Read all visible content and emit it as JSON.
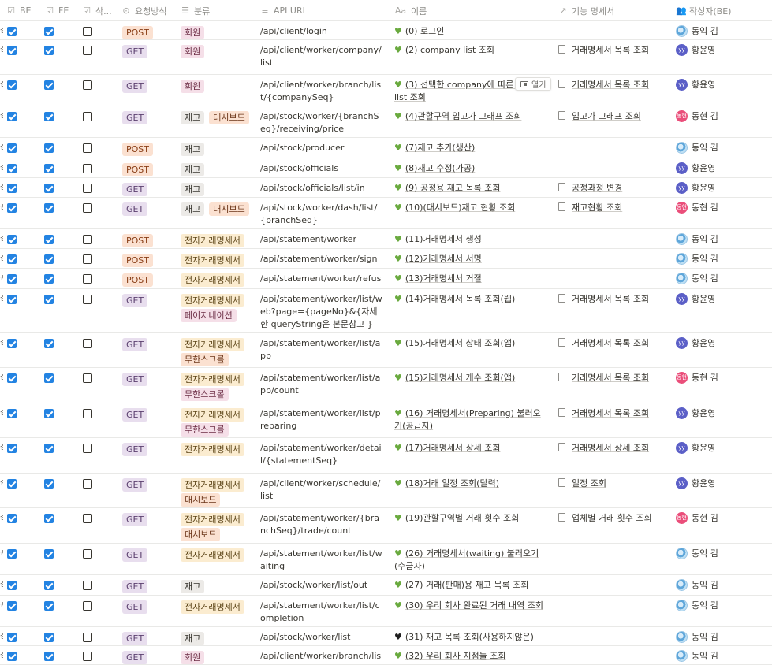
{
  "header": {
    "be": "BE",
    "fe": "FE",
    "delete": "삭...",
    "method": "요청방식",
    "category": "분류",
    "url": "API URL",
    "name": "이름",
    "spec": "기능 명세서",
    "author": "작성자(BE)"
  },
  "open_label": "열기",
  "colors": {
    "checkbox": "#2383e2",
    "post": "#fbe1d1",
    "get": "#e8deee",
    "heart": "#6aaa3f"
  },
  "rows": [
    {
      "be": true,
      "fe": true,
      "del": false,
      "method": "POST",
      "cats": [
        {
          "label": "회원",
          "c": "pink"
        }
      ],
      "url": "/api/client/login",
      "heart": "green",
      "name": "(0) 로그인",
      "spec": "",
      "author": "동익 김",
      "av": "globe"
    },
    {
      "be": true,
      "fe": true,
      "del": false,
      "method": "GET",
      "cats": [
        {
          "label": "회원",
          "c": "pink"
        }
      ],
      "url": "/api/client/worker/company/list",
      "heart": "green",
      "name": "(2) company list 조회",
      "spec": "거래명세서 목록 조회",
      "author": "황윤영",
      "av": "yy"
    },
    {
      "be": true,
      "fe": true,
      "del": false,
      "method": "GET",
      "cats": [
        {
          "label": "회원",
          "c": "pink"
        }
      ],
      "url": "/api/client/worker/branch/list/{companySeq}",
      "heart": "green",
      "name": "(3) 선택한 company에 따른 branch list 조회",
      "spec": "거래명세서 목록 조회",
      "author": "황윤영",
      "av": "yy"
    },
    {
      "be": true,
      "fe": true,
      "del": false,
      "method": "GET",
      "cats": [
        {
          "label": "재고",
          "c": "gray"
        },
        {
          "label": "대시보드",
          "c": "orange"
        }
      ],
      "url": "/api/stock/worker/{branchSeq}/receiving/price",
      "heart": "green",
      "name": "(4)관할구역 입고가 그래프 조회",
      "spec": "입고가 그래프 조회",
      "author": "동현 김",
      "av": "pink"
    },
    {
      "be": true,
      "fe": true,
      "del": false,
      "method": "POST",
      "cats": [
        {
          "label": "재고",
          "c": "gray"
        }
      ],
      "url": "/api/stock/producer",
      "heart": "green",
      "name": "(7)재고 추가(생산)",
      "spec": "",
      "author": "동익 김",
      "av": "globe"
    },
    {
      "be": true,
      "fe": true,
      "del": false,
      "method": "POST",
      "cats": [
        {
          "label": "재고",
          "c": "gray"
        }
      ],
      "url": "/api/stock/officials",
      "heart": "green",
      "name": "(8)재고 수정(가공)",
      "spec": "",
      "author": "황윤영",
      "av": "yy"
    },
    {
      "be": true,
      "fe": true,
      "del": false,
      "method": "GET",
      "cats": [
        {
          "label": "재고",
          "c": "gray"
        }
      ],
      "url": "/api/stock/officials/list/in",
      "heart": "green",
      "name": "(9) 공정용 재고 목록 조회",
      "spec": "공정과정 변경",
      "author": "황윤영",
      "av": "yy"
    },
    {
      "be": true,
      "fe": true,
      "del": false,
      "method": "GET",
      "cats": [
        {
          "label": "재고",
          "c": "gray"
        },
        {
          "label": "대시보드",
          "c": "orange"
        }
      ],
      "url": "/api/stock/worker/dash/list/{branchSeq}",
      "heart": "green",
      "name": "(10)(대시보드)재고 현황 조회",
      "spec": "재고현황 조회",
      "author": "동현 김",
      "av": "pink"
    },
    {
      "be": true,
      "fe": true,
      "del": false,
      "method": "POST",
      "cats": [
        {
          "label": "전자거래명세서",
          "c": "yellow"
        }
      ],
      "url": "/api/statement/worker",
      "heart": "green",
      "name": "(11)거래명세서 생성",
      "spec": "",
      "author": "동익 김",
      "av": "globe"
    },
    {
      "be": true,
      "fe": true,
      "del": false,
      "method": "POST",
      "cats": [
        {
          "label": "전자거래명세서",
          "c": "yellow"
        }
      ],
      "url": "/api/statement/worker/sign",
      "heart": "green",
      "name": "(12)거래명세서 서명",
      "spec": "",
      "author": "동익 김",
      "av": "globe"
    },
    {
      "be": true,
      "fe": true,
      "del": false,
      "method": "POST",
      "cats": [
        {
          "label": "전자거래명세서",
          "c": "yellow"
        }
      ],
      "url": "/api/statement/worker/refusal",
      "heart": "green",
      "name": "(13)거래명세서 거절",
      "spec": "",
      "author": "동익 김",
      "av": "globe"
    },
    {
      "be": true,
      "fe": true,
      "del": false,
      "method": "GET",
      "cats": [
        {
          "label": "전자거래명세서",
          "c": "yellow"
        },
        {
          "label": "페이지네이션",
          "c": "pink"
        }
      ],
      "url": "/api/statement/worker/list/web?page={pageNo}&{자세한 queryString은 본문참고 }",
      "heart": "green",
      "name": "(14)거래명세서 목록 조회(웹)",
      "spec": "거래명세서 목록 조회",
      "author": "황윤영",
      "av": "yy"
    },
    {
      "be": true,
      "fe": true,
      "del": false,
      "method": "GET",
      "cats": [
        {
          "label": "전자거래명세서",
          "c": "yellow"
        },
        {
          "label": "무한스크롤",
          "c": "orange"
        }
      ],
      "url": "/api/statement/worker/list/app",
      "heart": "green",
      "name": "(15)거래명세서 상태 조회(앱)",
      "spec": "거래명세서 목록 조회",
      "author": "황윤영",
      "av": "yy"
    },
    {
      "be": true,
      "fe": true,
      "del": false,
      "method": "GET",
      "cats": [
        {
          "label": "전자거래명세서",
          "c": "yellow"
        },
        {
          "label": "무한스크롤",
          "c": "pink"
        }
      ],
      "url": "/api/statement/worker/list/app/count",
      "heart": "green",
      "name": "(15)거래명세서 개수 조회(앱)",
      "spec": "거래명세서 목록 조회",
      "author": "동현 김",
      "av": "pink"
    },
    {
      "be": true,
      "fe": true,
      "del": false,
      "method": "GET",
      "cats": [
        {
          "label": "전자거래명세서",
          "c": "yellow"
        },
        {
          "label": "무한스크롤",
          "c": "pink"
        }
      ],
      "url": "/api/statement/worker/list/preparing",
      "heart": "green",
      "name": "(16) 거래명세서(Preparing) 불러오기(공급자)",
      "spec": "거래명세서 목록 조회",
      "author": "황윤영",
      "av": "yy"
    },
    {
      "be": true,
      "fe": true,
      "del": false,
      "method": "GET",
      "cats": [
        {
          "label": "전자거래명세서",
          "c": "yellow"
        }
      ],
      "url": "/api/statement/worker/detail/{statementSeq}",
      "heart": "green",
      "name": "(17)거래명세서 상세 조회",
      "spec": "거래명세서 상세 조회",
      "author": "황윤영",
      "av": "yy"
    },
    {
      "be": true,
      "fe": true,
      "del": false,
      "method": "GET",
      "cats": [
        {
          "label": "전자거래명세서",
          "c": "yellow"
        },
        {
          "label": "대시보드",
          "c": "orange"
        }
      ],
      "url": "/api/client/worker/schedule/list",
      "heart": "green",
      "name": "(18)거래 일정 조회(달력)",
      "spec": "일정 조회",
      "author": "황윤영",
      "av": "yy"
    },
    {
      "be": true,
      "fe": true,
      "del": false,
      "method": "GET",
      "cats": [
        {
          "label": "전자거래명세서",
          "c": "yellow"
        },
        {
          "label": "대시보드",
          "c": "orange"
        }
      ],
      "url": "/api/statement/worker/{branchSeq}/trade/count",
      "heart": "green",
      "name": "(19)관할구역별 거래 횟수 조회",
      "spec": "업체별 거래 횟수 조회",
      "author": "동현 김",
      "av": "pink"
    },
    {
      "be": true,
      "fe": true,
      "del": false,
      "method": "GET",
      "cats": [
        {
          "label": "전자거래명세서",
          "c": "yellow"
        }
      ],
      "url": "/api/statement/worker/list/waiting",
      "heart": "green",
      "name": "(26) 거래명세서(waiting) 불러오기(수급자)",
      "spec": "",
      "author": "동익 김",
      "av": "globe"
    },
    {
      "be": true,
      "fe": true,
      "del": false,
      "method": "GET",
      "cats": [
        {
          "label": "재고",
          "c": "gray"
        }
      ],
      "url": "/api/stock/worker/list/out",
      "heart": "green",
      "name": "(27) 거래(판매)용 재고 목록 조회",
      "spec": "",
      "author": "동익 김",
      "av": "globe"
    },
    {
      "be": true,
      "fe": true,
      "del": false,
      "method": "GET",
      "cats": [
        {
          "label": "전자거래명세서",
          "c": "yellow"
        }
      ],
      "url": "/api/statement/worker/list/completion",
      "heart": "green",
      "name": "(30) 우리 회사 완료된 거래 내역 조회",
      "spec": "",
      "author": "동익 김",
      "av": "globe"
    },
    {
      "be": true,
      "fe": true,
      "del": false,
      "method": "GET",
      "cats": [
        {
          "label": "재고",
          "c": "gray"
        }
      ],
      "url": "/api/stock/worker/list",
      "heart": "black",
      "name": "(31) 재고 목록 조회(사용하지않은)",
      "spec": "",
      "author": "동익 김",
      "av": "globe"
    },
    {
      "be": true,
      "fe": true,
      "del": false,
      "method": "GET",
      "cats": [
        {
          "label": "회원",
          "c": "pink"
        }
      ],
      "url": "/api/client/worker/branch/list",
      "heart": "green",
      "name": "(32) 우리 회사 지점들 조회",
      "spec": "",
      "author": "동익 김",
      "av": "globe"
    }
  ]
}
